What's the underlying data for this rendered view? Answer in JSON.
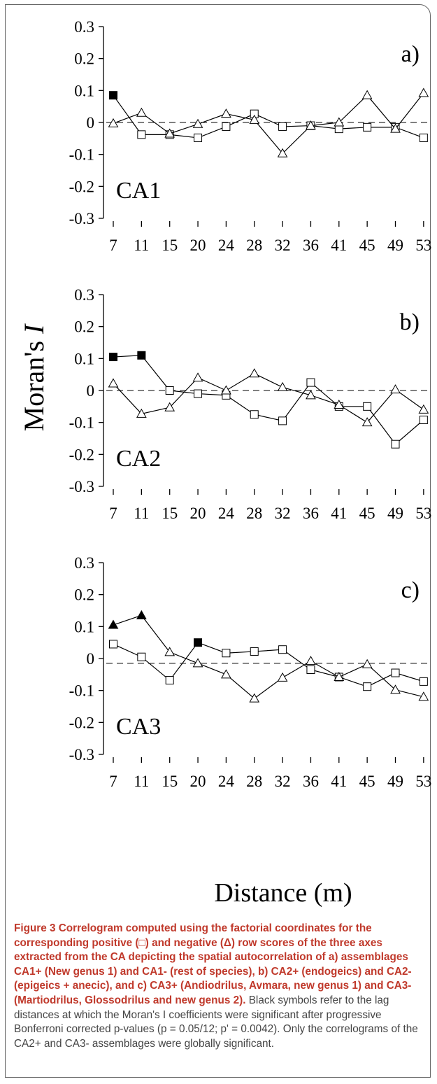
{
  "colors": {
    "axis": "#000000",
    "series_line": "#000000",
    "open_marker_fill": "#ffffff",
    "significant_marker_fill": "#000000",
    "caption_heading": "#c0392b",
    "caption_text": "#444444"
  },
  "ylabel": "Moran's I",
  "xlabel": "Distance (m)",
  "caption": {
    "label": "Figure 3",
    "heading": "Correlogram computed using the factorial coordinates for the corresponding positive (□) and negative (Δ) row scores of the three axes extracted from the CA depicting the spatial autocorrelation of a) assemblages CA1+ (New genus 1) and CA1- (rest of species), b) CA2+ (endogeics) and CA2- (epigeics + anecic), and c) CA3+ (Andiodrilus, Avmara, new genus 1) and CA3- (Martiodrilus, Glossodrilus and new genus 2).",
    "body": "Black symbols refer to the lag distances at which the Moran's I coefficients were significant after progressive Bonferroni corrected p-values (p = 0.05/12; p' = 0.0042). Only the correlograms of the CA2+ and CA3- assemblages were globally significant."
  },
  "chart_data": [
    {
      "type": "line",
      "panel": "a)",
      "label": "CA1",
      "x": [
        "7",
        "11",
        "15",
        "20",
        "24",
        "28",
        "32",
        "36",
        "41",
        "45",
        "49",
        "53"
      ],
      "ylim": [
        -0.3,
        0.3
      ],
      "yticks": [
        "0.3",
        "0.2",
        "0.1",
        "0",
        "-0.1",
        "-0.2",
        "-0.3"
      ],
      "zero_line": 0,
      "series": [
        {
          "marker": "square",
          "values": [
            0.085,
            -0.038,
            -0.038,
            -0.048,
            -0.013,
            0.027,
            -0.013,
            -0.01,
            -0.02,
            -0.015,
            -0.015,
            -0.048
          ],
          "significant": [
            true,
            false,
            false,
            false,
            false,
            false,
            false,
            false,
            false,
            false,
            false,
            false
          ]
        },
        {
          "marker": "triangle",
          "values": [
            -0.003,
            0.03,
            -0.035,
            -0.005,
            0.027,
            0.008,
            -0.097,
            -0.01,
            0.0,
            0.085,
            -0.02,
            0.092
          ],
          "significant": [
            false,
            false,
            false,
            false,
            false,
            false,
            false,
            false,
            false,
            false,
            false,
            false
          ]
        }
      ]
    },
    {
      "type": "line",
      "panel": "b)",
      "label": "CA2",
      "x": [
        "7",
        "11",
        "15",
        "20",
        "24",
        "28",
        "32",
        "36",
        "41",
        "45",
        "49",
        "53"
      ],
      "ylim": [
        -0.3,
        0.3
      ],
      "yticks": [
        "0.3",
        "0.2",
        "0.1",
        "0",
        "-0.1",
        "-0.2",
        "-0.3"
      ],
      "zero_line": 0,
      "series": [
        {
          "marker": "square",
          "values": [
            0.105,
            0.11,
            0.0,
            -0.01,
            -0.015,
            -0.075,
            -0.095,
            0.025,
            -0.05,
            -0.05,
            -0.168,
            -0.092
          ],
          "significant": [
            true,
            true,
            false,
            false,
            false,
            false,
            false,
            false,
            false,
            false,
            false,
            false
          ]
        },
        {
          "marker": "triangle",
          "values": [
            0.022,
            -0.073,
            -0.053,
            0.04,
            0.0,
            0.053,
            0.01,
            -0.015,
            -0.045,
            -0.1,
            0.003,
            -0.06
          ],
          "significant": [
            false,
            false,
            false,
            false,
            false,
            false,
            false,
            false,
            false,
            false,
            false,
            false
          ]
        }
      ]
    },
    {
      "type": "line",
      "panel": "c)",
      "label": "CA3",
      "x": [
        "7",
        "11",
        "15",
        "20",
        "24",
        "28",
        "32",
        "36",
        "41",
        "45",
        "49",
        "53"
      ],
      "ylim": [
        -0.3,
        0.3
      ],
      "yticks": [
        "0.3",
        "0.2",
        "0.1",
        "0",
        "-0.1",
        "-0.2",
        "-0.3"
      ],
      "zero_line": -0.015,
      "series": [
        {
          "marker": "square",
          "values": [
            0.045,
            0.005,
            -0.068,
            0.05,
            0.017,
            0.022,
            0.028,
            -0.035,
            -0.058,
            -0.088,
            -0.045,
            -0.072
          ],
          "significant": [
            false,
            false,
            false,
            true,
            false,
            false,
            false,
            false,
            false,
            false,
            false,
            false
          ]
        },
        {
          "marker": "triangle",
          "values": [
            0.105,
            0.135,
            0.02,
            -0.015,
            -0.05,
            -0.125,
            -0.06,
            -0.008,
            -0.058,
            -0.018,
            -0.098,
            -0.12
          ],
          "significant": [
            true,
            true,
            false,
            false,
            false,
            false,
            false,
            false,
            false,
            false,
            false,
            false
          ]
        }
      ]
    }
  ]
}
